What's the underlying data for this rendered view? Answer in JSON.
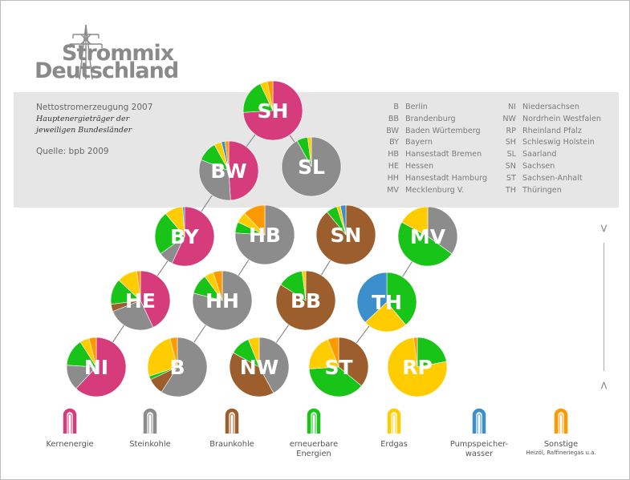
{
  "logo": {
    "line1": "Strommix",
    "line2": "Deutschland",
    "icon": "power-pylon-icon"
  },
  "info": {
    "title": "Nettostromerzeugung 2007",
    "subtitle1": "Hauptenergieträger der",
    "subtitle2": "jeweiligen Bundesländer",
    "source": "Quelle: bpb 2009"
  },
  "abbreviations_left": [
    {
      "code": "B",
      "name": "Berlin"
    },
    {
      "code": "BB",
      "name": "Brandenburg"
    },
    {
      "code": "BW",
      "name": "Baden Würtemberg"
    },
    {
      "code": "BY",
      "name": "Bayern"
    },
    {
      "code": "HB",
      "name": "Hansestadt Bremen"
    },
    {
      "code": "HE",
      "name": "Hessen"
    },
    {
      "code": "HH",
      "name": "Hansestadt Hamburg"
    },
    {
      "code": "MV",
      "name": "Mecklenburg V."
    }
  ],
  "abbreviations_right": [
    {
      "code": "NI",
      "name": "Niedersachsen"
    },
    {
      "code": "NW",
      "name": "Nordrhein Westfalen"
    },
    {
      "code": "RP",
      "name": "Rheinland Pfalz"
    },
    {
      "code": "SH",
      "name": "Schleswig Holstein"
    },
    {
      "code": "SL",
      "name": "Saarland"
    },
    {
      "code": "SN",
      "name": "Sachsen"
    },
    {
      "code": "ST",
      "name": "Sachsen-Anhalt"
    },
    {
      "code": "TH",
      "name": "Thüringen"
    }
  ],
  "nav": {
    "up": ">",
    "down": "<"
  },
  "legend": [
    {
      "key": "kern",
      "label": "Kernenergie",
      "label2": "",
      "note": "",
      "color": "#d63b7b"
    },
    {
      "key": "stein",
      "label": "Steinkohle",
      "label2": "",
      "note": "",
      "color": "#8c8c8c"
    },
    {
      "key": "braun",
      "label": "Braunkohle",
      "label2": "",
      "note": "",
      "color": "#9b5e2c"
    },
    {
      "key": "ern",
      "label": "erneuerbare",
      "label2": "Energien",
      "note": "",
      "color": "#17c417"
    },
    {
      "key": "gas",
      "label": "Erdgas",
      "label2": "",
      "note": "",
      "color": "#ffcc00"
    },
    {
      "key": "pump",
      "label": "Pumpspeicher-",
      "label2": "wasser",
      "note": "",
      "color": "#3a8fcc"
    },
    {
      "key": "sonst",
      "label": "Sonstige",
      "label2": "",
      "note": "Heizöl, Raffineriegas u.a.",
      "color": "#ff9900"
    }
  ],
  "chart_data": {
    "type": "pie",
    "unit": "percent share",
    "charts": [
      {
        "code": "SH",
        "kern": 74,
        "stein": 0,
        "braun": 0,
        "ern": 19,
        "gas": 4,
        "pump": 0,
        "sonst": 3
      },
      {
        "code": "BW",
        "kern": 49,
        "stein": 32,
        "braun": 0,
        "ern": 11,
        "gas": 4,
        "pump": 2,
        "sonst": 2
      },
      {
        "code": "SL",
        "kern": 0,
        "stein": 92,
        "braun": 0,
        "ern": 6,
        "gas": 2,
        "pump": 0,
        "sonst": 0
      },
      {
        "code": "BY",
        "kern": 57,
        "stein": 8,
        "braun": 0,
        "ern": 24,
        "gas": 10,
        "pump": 1,
        "sonst": 0
      },
      {
        "code": "HB",
        "kern": 0,
        "stein": 76,
        "braun": 0,
        "ern": 6,
        "gas": 6,
        "pump": 0,
        "sonst": 12
      },
      {
        "code": "SN",
        "kern": 0,
        "stein": 0,
        "braun": 89,
        "ern": 6,
        "gas": 2,
        "pump": 3,
        "sonst": 0
      },
      {
        "code": "MV",
        "kern": 0,
        "stein": 35,
        "braun": 0,
        "ern": 48,
        "gas": 17,
        "pump": 0,
        "sonst": 0
      },
      {
        "code": "HE",
        "kern": 43,
        "stein": 26,
        "braun": 4,
        "ern": 14,
        "gas": 11,
        "pump": 0,
        "sonst": 2
      },
      {
        "code": "HH",
        "kern": 0,
        "stein": 79,
        "braun": 0,
        "ern": 11,
        "gas": 5,
        "pump": 0,
        "sonst": 5
      },
      {
        "code": "BB",
        "kern": 0,
        "stein": 0,
        "braun": 84,
        "ern": 14,
        "gas": 2,
        "pump": 0,
        "sonst": 0
      },
      {
        "code": "TH",
        "kern": 0,
        "stein": 0,
        "braun": 0,
        "ern": 39,
        "gas": 24,
        "pump": 37,
        "sonst": 0
      },
      {
        "code": "NI",
        "kern": 62,
        "stein": 14,
        "braun": 0,
        "ern": 15,
        "gas": 5,
        "pump": 0,
        "sonst": 4
      },
      {
        "code": "B",
        "kern": 0,
        "stein": 59,
        "braun": 9,
        "ern": 2,
        "gas": 26,
        "pump": 0,
        "sonst": 4
      },
      {
        "code": "NW",
        "kern": 0,
        "stein": 42,
        "braun": 41,
        "ern": 11,
        "gas": 6,
        "pump": 0,
        "sonst": 0
      },
      {
        "code": "ST",
        "kern": 0,
        "stein": 0,
        "braun": 36,
        "ern": 38,
        "gas": 20,
        "pump": 0,
        "sonst": 6
      },
      {
        "code": "RP",
        "kern": 0,
        "stein": 0,
        "braun": 0,
        "ern": 22,
        "gas": 76,
        "pump": 0,
        "sonst": 2
      }
    ]
  }
}
